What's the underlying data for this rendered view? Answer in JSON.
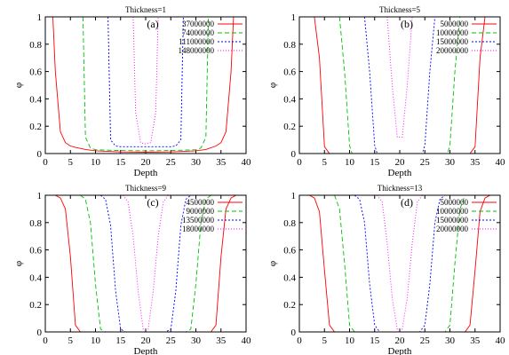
{
  "chart_data": [
    {
      "type": "line",
      "title": "Thickness=1",
      "panel_label": "(a)",
      "xlabel": "Depth",
      "ylabel": "φ",
      "xlim": [
        0,
        40
      ],
      "ylim": [
        0,
        1
      ],
      "xticks": [
        "0",
        "5",
        "10",
        "15",
        "20",
        "25",
        "30",
        "35",
        "40"
      ],
      "yticks": [
        "0",
        "0.2",
        "0.4",
        "0.6",
        "0.8",
        "1"
      ],
      "legend_position": "top-right",
      "series": [
        {
          "name": "37000000",
          "color": "#ff0000",
          "dash": "solid",
          "x": [
            1.5,
            2,
            3,
            4,
            5,
            6,
            8,
            10,
            15,
            20,
            25,
            30,
            32,
            34,
            35,
            36,
            37,
            37.5
          ],
          "y": [
            1.0,
            0.6,
            0.16,
            0.08,
            0.055,
            0.045,
            0.03,
            0.02,
            0.012,
            0.01,
            0.012,
            0.02,
            0.03,
            0.055,
            0.08,
            0.16,
            0.6,
            1.0
          ]
        },
        {
          "name": "74000000",
          "color": "#00c000",
          "dash": "5,3",
          "x": [
            7.5,
            8,
            9,
            10,
            15,
            20,
            25,
            30,
            31,
            32,
            32.5
          ],
          "y": [
            1.0,
            0.12,
            0.04,
            0.028,
            0.022,
            0.02,
            0.022,
            0.028,
            0.04,
            0.12,
            1.0
          ]
        },
        {
          "name": "111000000",
          "color": "#0000ff",
          "dash": "2,2",
          "x": [
            12.5,
            13,
            14,
            15,
            20,
            25,
            26,
            27,
            27.5
          ],
          "y": [
            1.0,
            0.1,
            0.055,
            0.05,
            0.05,
            0.05,
            0.055,
            0.1,
            1.0
          ]
        },
        {
          "name": "148000000",
          "color": "#ff00ff",
          "dash": "1,2",
          "x": [
            17.5,
            18,
            19,
            20,
            21,
            22,
            22.5
          ],
          "y": [
            1.0,
            0.3,
            0.08,
            0.07,
            0.08,
            0.3,
            1.0
          ]
        }
      ]
    },
    {
      "type": "line",
      "title": "Thickness=5",
      "panel_label": "(b)",
      "xlabel": "Depth",
      "ylabel": "φ",
      "xlim": [
        0,
        40
      ],
      "ylim": [
        0,
        1
      ],
      "xticks": [
        "0",
        "5",
        "10",
        "15",
        "20",
        "25",
        "30",
        "35",
        "40"
      ],
      "yticks": [
        "0",
        "0.2",
        "0.4",
        "0.6",
        "0.8",
        "1"
      ],
      "legend_position": "top-right",
      "series": [
        {
          "name": "5000000",
          "color": "#ff0000",
          "dash": "solid",
          "x": [
            3,
            4,
            5,
            6,
            34,
            35,
            36,
            37
          ],
          "y": [
            1.0,
            0.7,
            0.05,
            0.0,
            0.0,
            0.05,
            0.7,
            1.0
          ]
        },
        {
          "name": "10000000",
          "color": "#00c000",
          "dash": "5,3",
          "x": [
            8,
            9,
            10,
            10.5,
            29.5,
            30,
            31,
            32
          ],
          "y": [
            1.0,
            0.6,
            0.06,
            0.0,
            0.0,
            0.06,
            0.6,
            1.0
          ]
        },
        {
          "name": "15000000",
          "color": "#0000ff",
          "dash": "2,2",
          "x": [
            13,
            14,
            15,
            15.5,
            24.5,
            25,
            26,
            27
          ],
          "y": [
            1.0,
            0.6,
            0.06,
            0.0,
            0.0,
            0.06,
            0.6,
            1.0
          ]
        },
        {
          "name": "20000000",
          "color": "#ff00ff",
          "dash": "1,2",
          "x": [
            17.5,
            18.5,
            19.5,
            20.5,
            21.5,
            22.5
          ],
          "y": [
            1.0,
            0.5,
            0.12,
            0.12,
            0.5,
            1.0
          ]
        }
      ]
    },
    {
      "type": "line",
      "title": "Thickness=9",
      "panel_label": "(c)",
      "xlabel": "Depth",
      "ylabel": "φ",
      "xlim": [
        0,
        40
      ],
      "ylim": [
        0,
        1
      ],
      "xticks": [
        "0",
        "5",
        "10",
        "15",
        "20",
        "25",
        "30",
        "35",
        "40"
      ],
      "yticks": [
        "0",
        "0.2",
        "0.4",
        "0.6",
        "0.8",
        "1"
      ],
      "legend_position": "top-right",
      "series": [
        {
          "name": "4500000",
          "color": "#ff0000",
          "dash": "solid",
          "x": [
            2,
            3,
            4,
            5,
            6,
            7,
            33,
            34,
            35,
            36,
            37,
            38
          ],
          "y": [
            1.0,
            0.98,
            0.9,
            0.55,
            0.05,
            0.0,
            0.0,
            0.05,
            0.55,
            0.9,
            0.98,
            1.0
          ]
        },
        {
          "name": "9000000",
          "color": "#00c000",
          "dash": "5,3",
          "x": [
            7,
            8,
            9,
            10,
            11,
            12,
            28,
            29,
            30,
            31,
            32,
            33
          ],
          "y": [
            1.0,
            0.97,
            0.8,
            0.35,
            0.02,
            0.0,
            0.0,
            0.02,
            0.35,
            0.8,
            0.97,
            1.0
          ]
        },
        {
          "name": "13500000",
          "color": "#0000ff",
          "dash": "2,2",
          "x": [
            11,
            12,
            13,
            14,
            15,
            16,
            24,
            25,
            26,
            27,
            28,
            29
          ],
          "y": [
            1.0,
            0.97,
            0.78,
            0.3,
            0.02,
            0.0,
            0.0,
            0.02,
            0.3,
            0.78,
            0.97,
            1.0
          ]
        },
        {
          "name": "18000000",
          "color": "#ff00ff",
          "dash": "1,2",
          "x": [
            15.5,
            16.5,
            17.5,
            18.5,
            19.5,
            20.5,
            21.5,
            22.5,
            23.5,
            24.5
          ],
          "y": [
            1.0,
            0.95,
            0.7,
            0.3,
            0.02,
            0.02,
            0.3,
            0.7,
            0.95,
            1.0
          ]
        }
      ]
    },
    {
      "type": "line",
      "title": "Thickness=13",
      "panel_label": "(d)",
      "xlabel": "Depth",
      "ylabel": "φ",
      "xlim": [
        0,
        40
      ],
      "ylim": [
        0,
        1
      ],
      "xticks": [
        "0",
        "5",
        "10",
        "15",
        "20",
        "25",
        "30",
        "35",
        "40"
      ],
      "yticks": [
        "0",
        "0.2",
        "0.4",
        "0.6",
        "0.8",
        "1"
      ],
      "legend_position": "top-right",
      "series": [
        {
          "name": "5000000",
          "color": "#ff0000",
          "dash": "solid",
          "x": [
            2,
            3,
            4,
            5,
            6,
            7,
            33,
            34,
            35,
            36,
            37,
            38
          ],
          "y": [
            1.0,
            0.98,
            0.88,
            0.45,
            0.05,
            0.0,
            0.0,
            0.05,
            0.45,
            0.88,
            0.98,
            1.0
          ]
        },
        {
          "name": "10000000",
          "color": "#00c000",
          "dash": "5,3",
          "x": [
            7,
            8,
            9,
            10,
            11,
            29,
            30,
            31,
            32,
            33
          ],
          "y": [
            1.0,
            0.9,
            0.5,
            0.05,
            0.0,
            0.0,
            0.05,
            0.5,
            0.9,
            1.0
          ]
        },
        {
          "name": "15000000",
          "color": "#0000ff",
          "dash": "2,2",
          "x": [
            11,
            12,
            13,
            14,
            15,
            16,
            24,
            25,
            26,
            27,
            28,
            29
          ],
          "y": [
            1.0,
            0.97,
            0.8,
            0.35,
            0.05,
            0.0,
            0.0,
            0.05,
            0.35,
            0.8,
            0.97,
            1.0
          ]
        },
        {
          "name": "20000000",
          "color": "#ff00ff",
          "dash": "1,2",
          "x": [
            15.5,
            16.5,
            17.5,
            18.5,
            19.5,
            20.5,
            21.5,
            22.5,
            23.5,
            24.5
          ],
          "y": [
            1.0,
            0.95,
            0.65,
            0.25,
            0.02,
            0.02,
            0.25,
            0.65,
            0.95,
            1.0
          ]
        }
      ]
    }
  ]
}
